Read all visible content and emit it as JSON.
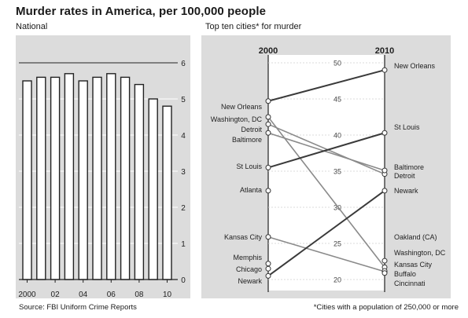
{
  "title": "Murder rates in America, per 100,000 people",
  "source": "Source: FBI Uniform Crime Reports",
  "footnote": "*Cities with a population of 250,000 or more",
  "chart_data": [
    {
      "type": "bar",
      "title": "National",
      "x": [
        2000,
        2001,
        2002,
        2003,
        2004,
        2005,
        2006,
        2007,
        2008,
        2009,
        2010
      ],
      "x_tick_labels": [
        "2000",
        "02",
        "04",
        "06",
        "08",
        "10"
      ],
      "x_tick_years": [
        2000,
        2002,
        2004,
        2006,
        2008,
        2010
      ],
      "values": [
        5.5,
        5.6,
        5.6,
        5.7,
        5.5,
        5.6,
        5.7,
        5.6,
        5.4,
        5.0,
        4.8
      ],
      "ylim": [
        0,
        6
      ],
      "y_ticks": [
        0,
        1,
        2,
        3,
        4,
        5,
        6
      ],
      "y_axis_side": "right",
      "colors": {
        "bar_fill": "#ffffff",
        "bar_stroke": "#222222",
        "panel_bg": "#dcdcdc"
      }
    },
    {
      "type": "line",
      "title": "Top ten cities* for murder",
      "x_labels": [
        "2000",
        "2010"
      ],
      "ylim": [
        20,
        50
      ],
      "y_ticks": [
        20,
        25,
        30,
        35,
        40,
        45,
        50
      ],
      "series": [
        {
          "name_2000": "New Orleans",
          "name_2010": "New Orleans",
          "v2000": 44.7,
          "v2010": 49.0,
          "color": "#3a3a3a"
        },
        {
          "name_2000": "Washington, DC",
          "name_2010": "Washington, DC",
          "v2000": 42.5,
          "v2010": 21.7,
          "color": "#8a8a8a"
        },
        {
          "name_2000": "Detroit",
          "name_2010": "Detroit",
          "v2000": 41.5,
          "v2010": 34.6,
          "color": "#8a8a8a"
        },
        {
          "name_2000": "Baltimore",
          "name_2010": "Baltimore",
          "v2000": 40.3,
          "v2010": 35.1,
          "color": "#8a8a8a"
        },
        {
          "name_2000": "St Louis",
          "name_2010": "St Louis",
          "v2000": 35.5,
          "v2010": 40.3,
          "color": "#3a3a3a"
        },
        {
          "name_2000": "Atlanta",
          "name_2010": null,
          "v2000": 32.3,
          "v2010": null,
          "color": "#8a8a8a"
        },
        {
          "name_2000": "Kansas City",
          "name_2010": "Kansas City",
          "v2000": 25.9,
          "v2010": 21.1,
          "color": "#8a8a8a"
        },
        {
          "name_2000": "Memphis",
          "name_2010": null,
          "v2000": 22.2,
          "v2010": null,
          "color": "#8a8a8a"
        },
        {
          "name_2000": "Chicago",
          "name_2010": null,
          "v2000": 21.5,
          "v2010": null,
          "color": "#8a8a8a"
        },
        {
          "name_2000": "Newark",
          "name_2010": "Newark",
          "v2000": 20.5,
          "v2010": 32.3,
          "color": "#3a3a3a"
        },
        {
          "name_2000": null,
          "name_2010": "Oakland (CA)",
          "v2000": null,
          "v2010": 22.6,
          "color": "#8a8a8a"
        },
        {
          "name_2000": null,
          "name_2010": "Buffalo",
          "v2000": null,
          "v2010": 21.2,
          "color": "#8a8a8a"
        },
        {
          "name_2000": null,
          "name_2010": "Cincinnati",
          "v2000": null,
          "v2010": 20.9,
          "color": "#8a8a8a"
        }
      ],
      "colors": {
        "panel_bg": "#dcdcdc",
        "band_bg": "#ffffff"
      }
    }
  ]
}
